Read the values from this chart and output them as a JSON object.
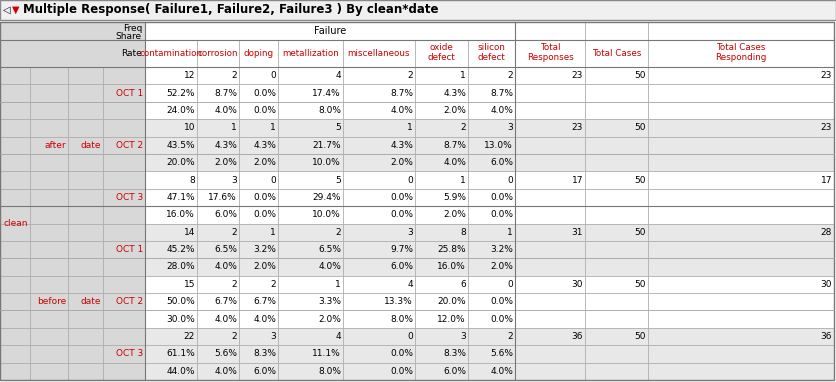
{
  "title": "Multiple Response( Failure1, Failure2, Failure3 ) By clean*date",
  "rows": [
    {
      "group": "after",
      "oct": "OCT 1",
      "freq": [
        12,
        2,
        0,
        4,
        2,
        1,
        2
      ],
      "share": [
        "52.2%",
        "8.7%",
        "0.0%",
        "17.4%",
        "8.7%",
        "4.3%",
        "8.7%"
      ],
      "rate": [
        "24.0%",
        "4.0%",
        "0.0%",
        "8.0%",
        "4.0%",
        "2.0%",
        "4.0%"
      ],
      "total_resp": "23",
      "total_cases": "50",
      "total_resp_val": "23"
    },
    {
      "group": "after",
      "oct": "OCT 2",
      "freq": [
        10,
        1,
        1,
        5,
        1,
        2,
        3
      ],
      "share": [
        "43.5%",
        "4.3%",
        "4.3%",
        "21.7%",
        "4.3%",
        "8.7%",
        "13.0%"
      ],
      "rate": [
        "20.0%",
        "2.0%",
        "2.0%",
        "10.0%",
        "2.0%",
        "4.0%",
        "6.0%"
      ],
      "total_resp": "23",
      "total_cases": "50",
      "total_resp_val": "23"
    },
    {
      "group": "after",
      "oct": "OCT 3",
      "freq": [
        8,
        3,
        0,
        5,
        0,
        1,
        0
      ],
      "share": [
        "47.1%",
        "17.6%",
        "0.0%",
        "29.4%",
        "0.0%",
        "5.9%",
        "0.0%"
      ],
      "rate": [
        "16.0%",
        "6.0%",
        "0.0%",
        "10.0%",
        "0.0%",
        "2.0%",
        "0.0%"
      ],
      "total_resp": "17",
      "total_cases": "50",
      "total_resp_val": "17"
    },
    {
      "group": "before",
      "oct": "OCT 1",
      "freq": [
        14,
        2,
        1,
        2,
        3,
        8,
        1
      ],
      "share": [
        "45.2%",
        "6.5%",
        "3.2%",
        "6.5%",
        "9.7%",
        "25.8%",
        "3.2%"
      ],
      "rate": [
        "28.0%",
        "4.0%",
        "2.0%",
        "4.0%",
        "6.0%",
        "16.0%",
        "2.0%"
      ],
      "total_resp": "31",
      "total_cases": "50",
      "total_resp_val": "28"
    },
    {
      "group": "before",
      "oct": "OCT 2",
      "freq": [
        15,
        2,
        2,
        1,
        4,
        6,
        0
      ],
      "share": [
        "50.0%",
        "6.7%",
        "6.7%",
        "3.3%",
        "13.3%",
        "20.0%",
        "0.0%"
      ],
      "rate": [
        "30.0%",
        "4.0%",
        "4.0%",
        "2.0%",
        "8.0%",
        "12.0%",
        "0.0%"
      ],
      "total_resp": "30",
      "total_cases": "50",
      "total_resp_val": "30"
    },
    {
      "group": "before",
      "oct": "OCT 3",
      "freq": [
        22,
        2,
        3,
        4,
        0,
        3,
        2
      ],
      "share": [
        "61.1%",
        "5.6%",
        "8.3%",
        "11.1%",
        "0.0%",
        "8.3%",
        "5.6%"
      ],
      "rate": [
        "44.0%",
        "4.0%",
        "6.0%",
        "8.0%",
        "0.0%",
        "6.0%",
        "4.0%"
      ],
      "total_resp": "36",
      "total_cases": "50",
      "total_resp_val": "36"
    }
  ],
  "col_names": [
    "contamination",
    "corrosion",
    "doping",
    "metallization",
    "miscellaneous",
    "oxide\ndefect",
    "silicon\ndefect",
    "Total\nResponses",
    "Total Cases",
    "Total Cases\nResponding"
  ],
  "red": "#CC0000",
  "black": "#000000",
  "gray_bg": "#E8E8E8",
  "header_gray": "#D8D8D8",
  "white": "#FFFFFF",
  "border": "#AAAAAA",
  "title_bg": "#F0F0F0"
}
